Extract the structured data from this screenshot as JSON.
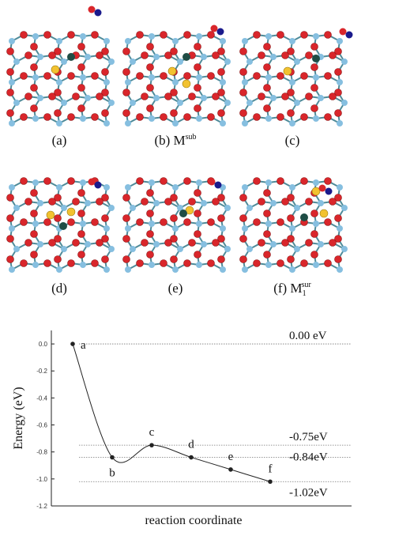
{
  "panels": [
    {
      "label": "(a)"
    },
    {
      "label": "(b) M",
      "sup": "sub"
    },
    {
      "label": "(c)"
    },
    {
      "label": "(d)"
    },
    {
      "label": "(e)"
    },
    {
      "label": "(f) M",
      "sub": "1",
      "sup": "sur"
    }
  ],
  "chart_data": {
    "type": "line",
    "categories": [
      "a",
      "b",
      "c",
      "d",
      "e",
      "f"
    ],
    "values": [
      0.0,
      -0.84,
      -0.75,
      -0.84,
      -0.93,
      -1.02
    ],
    "color": "#222222",
    "ylim": [
      -1.2,
      0.1
    ],
    "yticks": [
      {
        "value": 0,
        "label": "0.0"
      },
      -0.2,
      -0.4,
      -0.6,
      -0.8,
      {
        "value": -1,
        "label": "-1.0"
      },
      -1.2
    ],
    "levels": [
      {
        "value": 0,
        "label": "0.00 eV"
      },
      {
        "value": -0.75,
        "label": "-0.75eV"
      },
      {
        "value": -0.84,
        "label": "-0.84eV"
      },
      {
        "value": -1.02,
        "label": "-1.02eV"
      }
    ],
    "xlabel": "reaction coordinate",
    "ylabel": "Energy (eV)"
  }
}
